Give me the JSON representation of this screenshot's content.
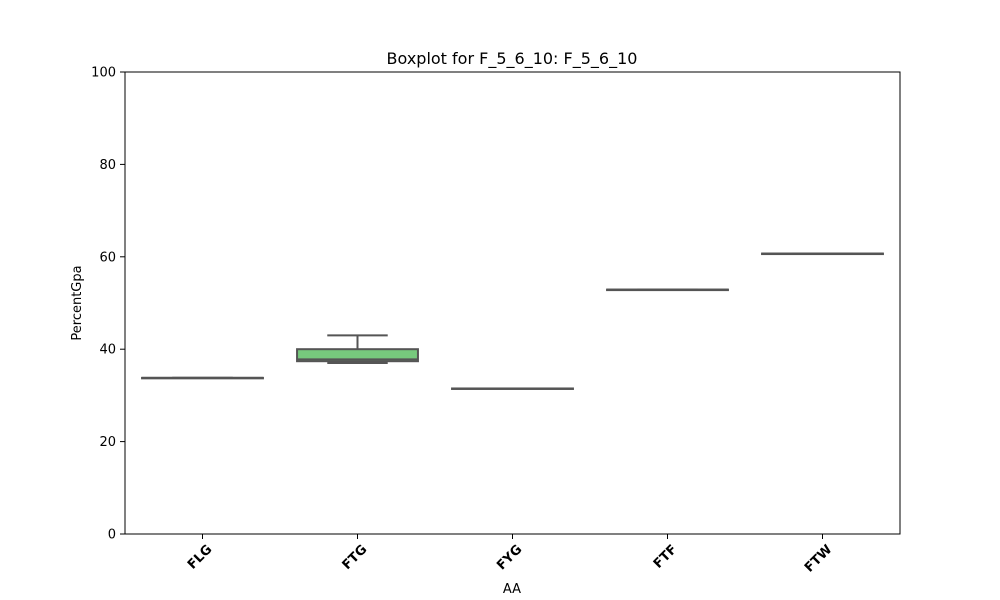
{
  "chart_data": {
    "type": "box",
    "title": "Boxplot for F_5_6_10: F_5_6_10",
    "xlabel": "AA",
    "ylabel": "PercentGpa",
    "ylim": [
      0,
      100
    ],
    "yticks": [
      0,
      20,
      40,
      60,
      80,
      100
    ],
    "grid": false,
    "categories": [
      "FLG",
      "FTG",
      "FYG",
      "FTF",
      "FTW"
    ],
    "boxes": [
      {
        "category": "FLG",
        "min": 33.8,
        "q1": 33.8,
        "median": 33.8,
        "q3": 33.8,
        "max": 33.8
      },
      {
        "category": "FTG",
        "min": 37.0,
        "q1": 37.4,
        "median": 37.8,
        "q3": 40.0,
        "max": 43.0
      },
      {
        "category": "FYG",
        "min": 31.5,
        "q1": 31.5,
        "median": 31.5,
        "q3": 31.5,
        "max": 31.5
      },
      {
        "category": "FTF",
        "min": 52.9,
        "q1": 52.9,
        "median": 52.9,
        "q3": 52.9,
        "max": 52.9
      },
      {
        "category": "FTW",
        "min": 60.7,
        "q1": 60.7,
        "median": 60.7,
        "q3": 60.7,
        "max": 60.7
      }
    ],
    "colors": {
      "box_fill": "#77c97d",
      "line": "#555555",
      "axis": "#000000"
    }
  }
}
